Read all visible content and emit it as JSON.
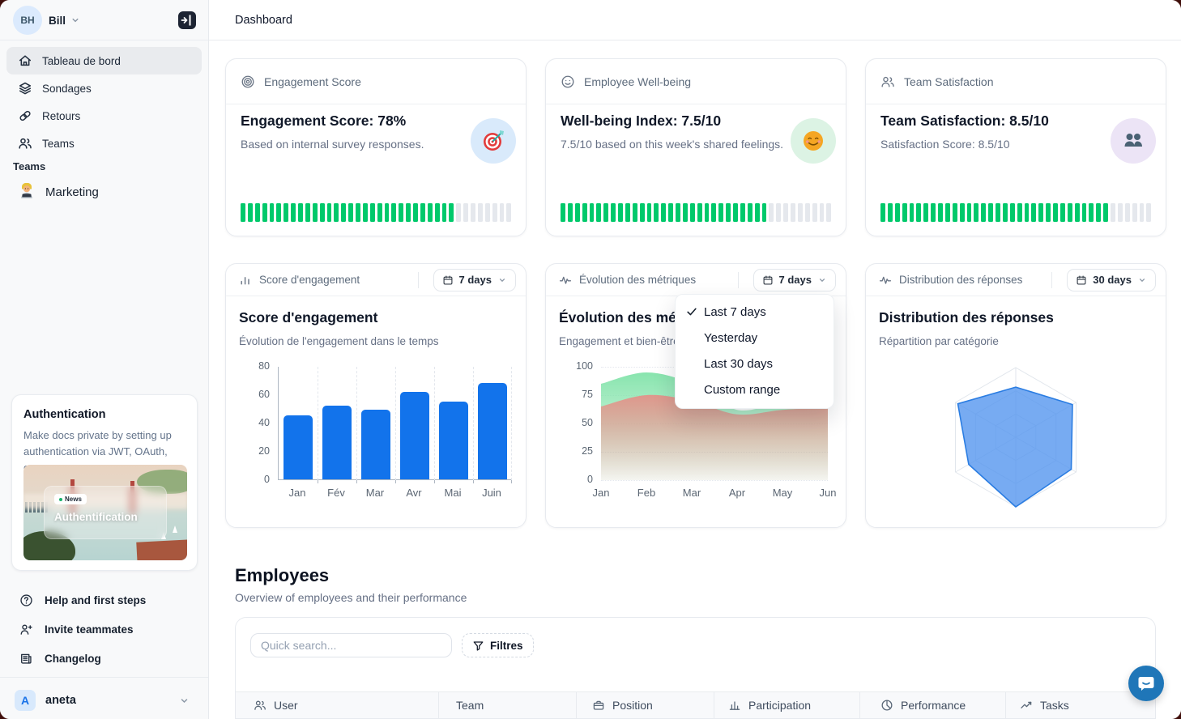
{
  "topbar": {
    "title": "Dashboard"
  },
  "sidebar": {
    "user": {
      "initials": "BH",
      "name": "Bill"
    },
    "nav": [
      {
        "label": "Tableau de bord",
        "icon": "home",
        "active": true
      },
      {
        "label": "Sondages",
        "icon": "layers"
      },
      {
        "label": "Retours",
        "icon": "chain-link"
      },
      {
        "label": "Teams",
        "icon": "users"
      }
    ],
    "teams_label": "Teams",
    "team_items": [
      {
        "label": "Marketing",
        "icon": "technologist-emoji"
      }
    ],
    "promo": {
      "title": "Authentication",
      "description": "Make docs private by setting up authentication via JWT, OAuth, or...",
      "badge": "News",
      "image_title": "Authentification"
    },
    "footer_nav": [
      {
        "label": "Help and first steps",
        "icon": "help-circle"
      },
      {
        "label": "Invite teammates",
        "icon": "user-plus"
      },
      {
        "label": "Changelog",
        "icon": "newspaper"
      }
    ],
    "workspace": {
      "initial": "A",
      "name": "aneta"
    }
  },
  "metrics": [
    {
      "header": "Engagement Score",
      "title": "Engagement Score: 78%",
      "subtitle": "Based on internal survey responses.",
      "icon": "target-emoji",
      "icon_bg": "#d9eafb",
      "progress_pct": 78
    },
    {
      "header": "Employee Well-being",
      "title": "Well-being Index: 7.5/10",
      "subtitle": "7.5/10 based on this week's shared feelings.",
      "icon": "smiley-emoji",
      "icon_bg": "#dcf3e4",
      "progress_pct": 75
    },
    {
      "header": "Team Satisfaction",
      "title": "Team Satisfaction: 8.5/10",
      "subtitle": "Satisfaction Score: 8.5/10",
      "icon": "two-users-emoji",
      "icon_bg": "#ece4f6",
      "progress_pct": 85
    }
  ],
  "progress": {
    "segments": 38,
    "on_color": "#00c96b",
    "off_color": "#e5e8ed"
  },
  "panels": [
    {
      "header": "Score d'engagement",
      "range_label": "7 days"
    },
    {
      "header": "Évolution des métriques",
      "range_label": "7 days"
    },
    {
      "header": "Distribution des réponses",
      "range_label": "30 days"
    }
  ],
  "menu": {
    "items": [
      {
        "label": "Last 7 days",
        "checked": true
      },
      {
        "label": "Yesterday",
        "checked": false
      },
      {
        "label": "Last 30 days",
        "checked": false
      },
      {
        "label": "Custom range",
        "checked": false
      }
    ]
  },
  "employees": {
    "title": "Employees",
    "subtitle": "Overview of employees and their performance",
    "search_placeholder": "Quick search...",
    "filter_label": "Filtres",
    "columns": [
      {
        "label": "User",
        "icon": "users"
      },
      {
        "label": "Team",
        "icon": ""
      },
      {
        "label": "Position",
        "icon": "briefcase"
      },
      {
        "label": "Participation",
        "icon": "bar-chart"
      },
      {
        "label": "Performance",
        "icon": "pie-chart"
      },
      {
        "label": "Tasks",
        "icon": "trend-up"
      }
    ]
  },
  "chart_data": [
    {
      "type": "bar",
      "title": "Score d'engagement",
      "subtitle": "Évolution de l'engagement dans le temps",
      "categories": [
        "Jan",
        "Fév",
        "Mar",
        "Avr",
        "Mai",
        "Juin"
      ],
      "values": [
        45,
        52,
        49,
        62,
        55,
        68
      ],
      "ylim": [
        0,
        80
      ],
      "yticks": [
        0,
        20,
        40,
        60,
        80
      ],
      "bar_color": "#1273eb",
      "grid": "vertical-dashed",
      "legend": "none"
    },
    {
      "type": "area",
      "title": "Évolution des métriques",
      "subtitle": "Engagement et bien-être",
      "categories": [
        "Jan",
        "Feb",
        "Mar",
        "Apr",
        "May",
        "Jun"
      ],
      "series": [
        {
          "name": "engagement",
          "color": "#7ee2a7",
          "values": [
            85,
            95,
            85,
            62,
            68,
            66
          ]
        },
        {
          "name": "bien-être",
          "color": "#e59088",
          "values": [
            65,
            75,
            70,
            58,
            62,
            64
          ]
        }
      ],
      "ylim": [
        0,
        100
      ],
      "yticks": [
        0,
        25,
        50,
        75,
        100
      ],
      "grid": "horizontal-dotted",
      "legend": "none"
    },
    {
      "type": "radar",
      "title": "Distribution des réponses",
      "subtitle": "Répartition par catégorie",
      "axes": 6,
      "values": [
        0.72,
        0.94,
        0.92,
        1.0,
        0.78,
        0.96
      ],
      "max": 1,
      "fill": "#5596ef",
      "stroke": "#2b7de2",
      "grid_levels": 3
    }
  ]
}
